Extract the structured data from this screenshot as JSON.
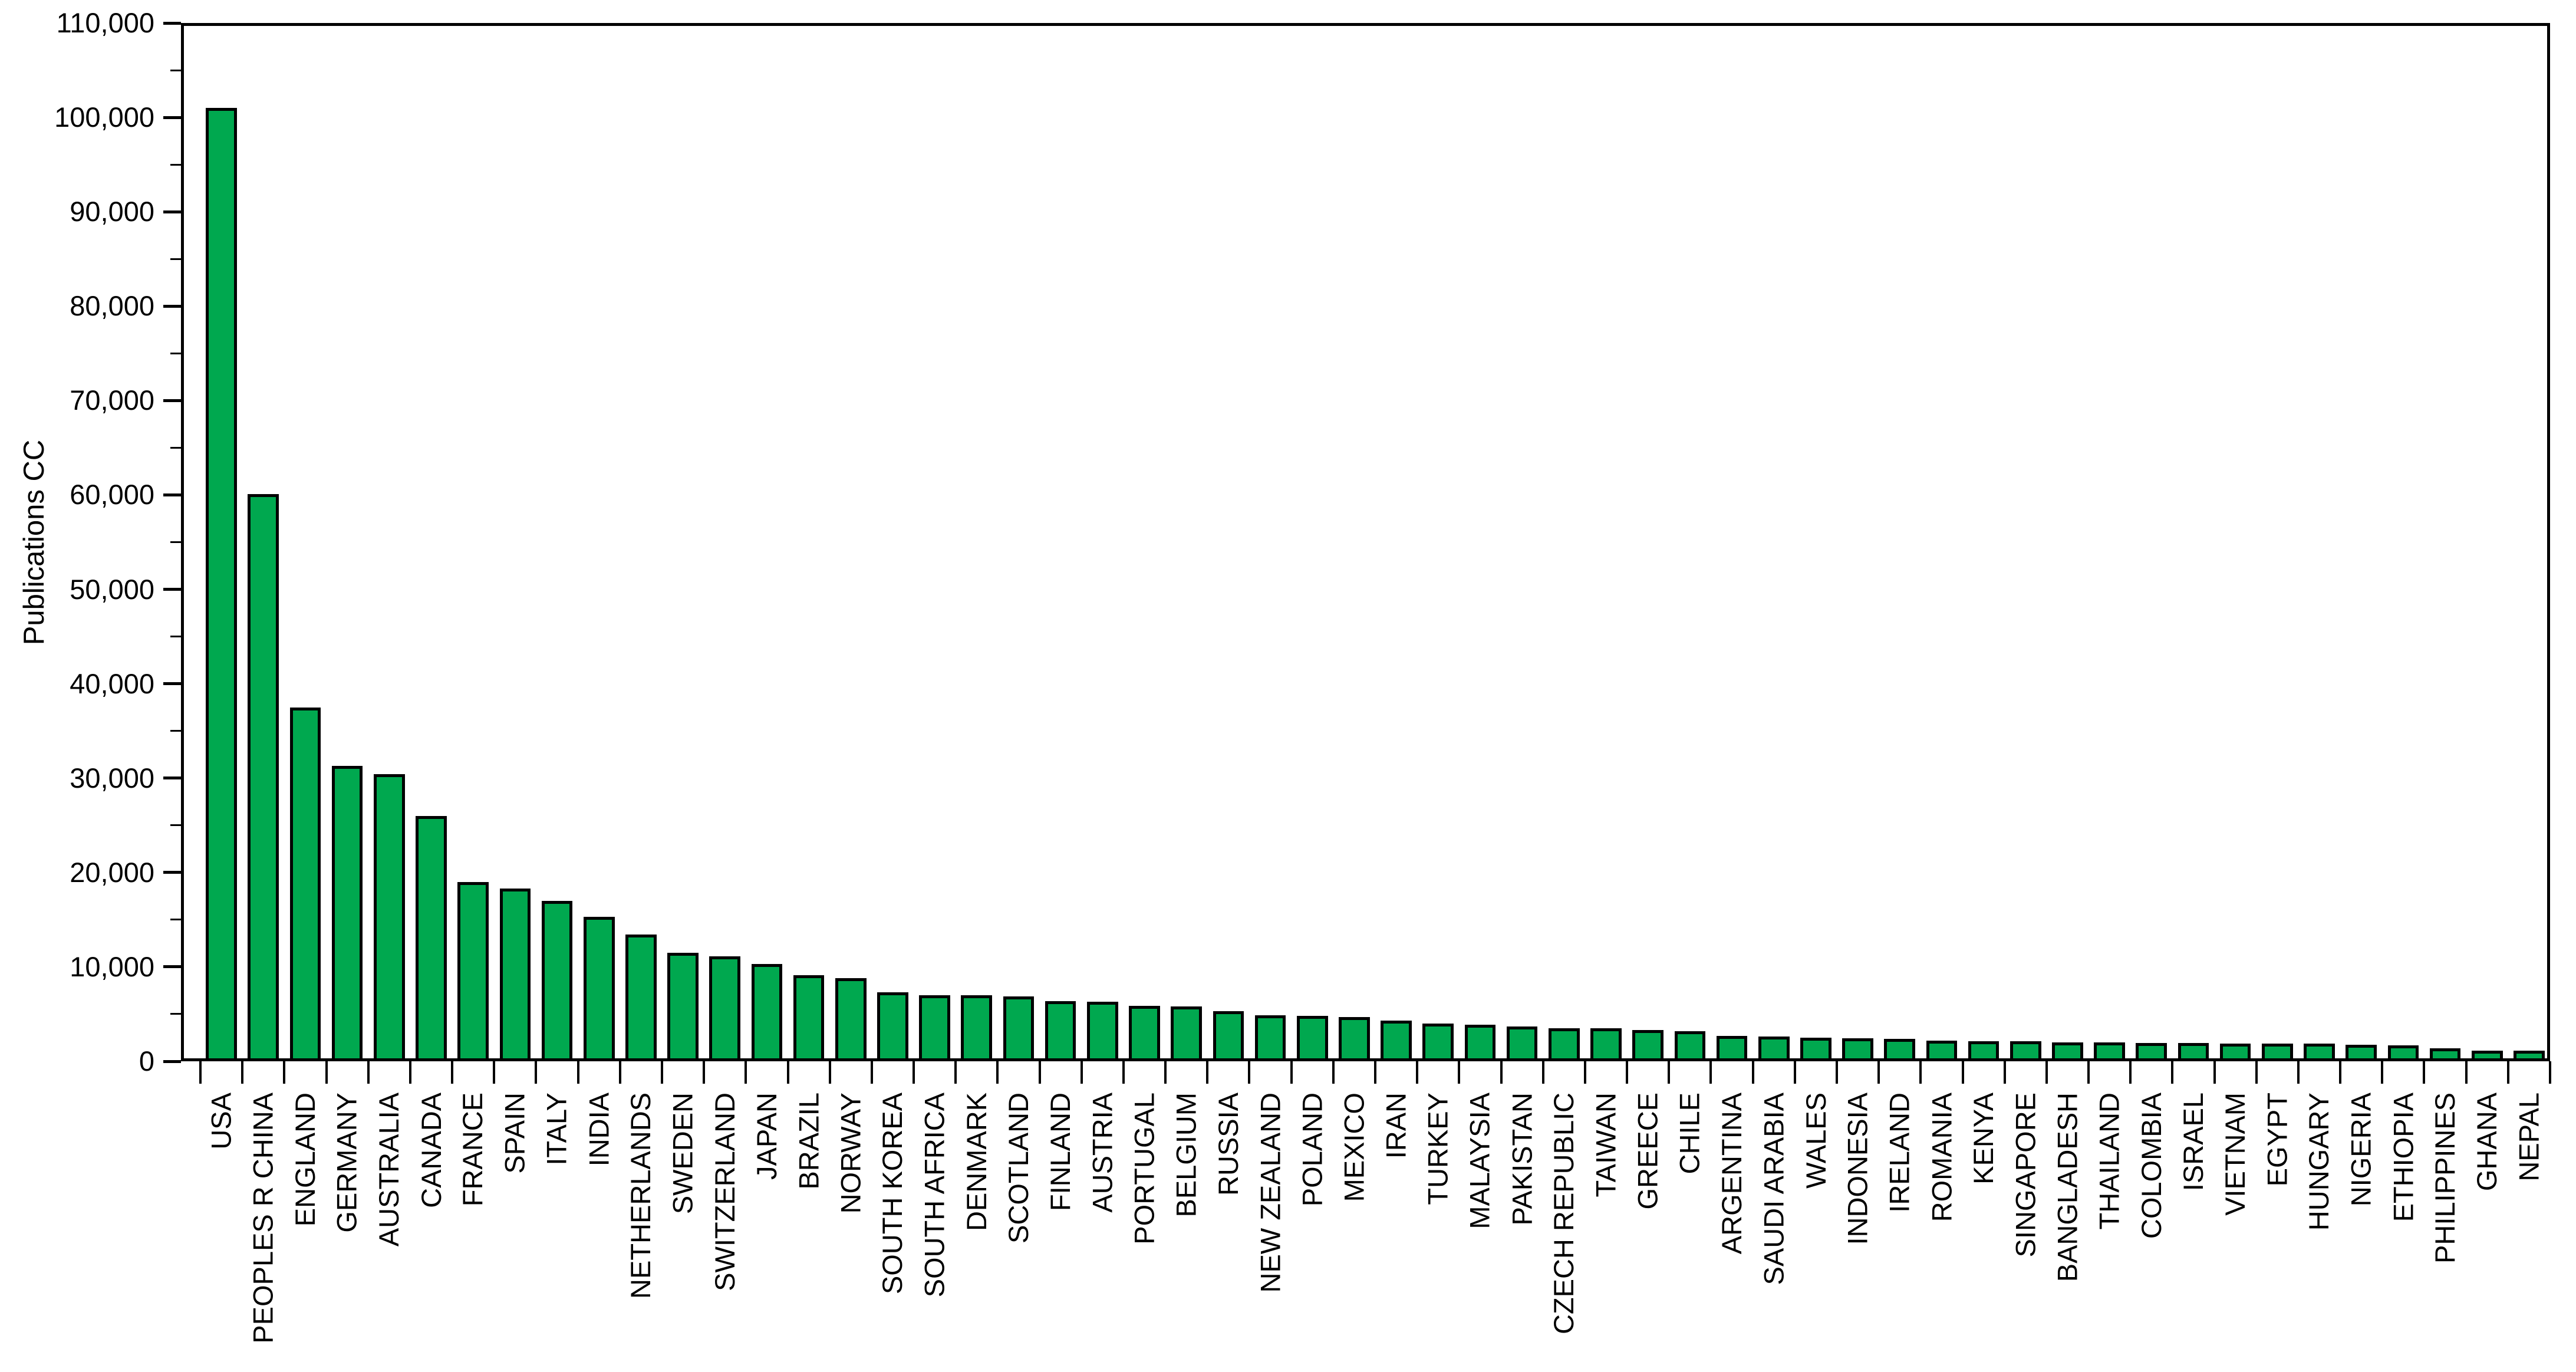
{
  "chart_data": {
    "type": "bar",
    "title": "",
    "xlabel": "",
    "ylabel": "Publications CC",
    "ylim": [
      0,
      110000
    ],
    "ytick_major": 10000,
    "ytick_minor": 5000,
    "ytick_labels": [
      "0",
      "10,000",
      "20,000",
      "30,000",
      "40,000",
      "50,000",
      "60,000",
      "70,000",
      "80,000",
      "90,000",
      "100,000",
      "110,000"
    ],
    "grid": false,
    "legend_position": "none",
    "bar_color": "#00A84F",
    "bar_border_color": "#000000",
    "categories": [
      "USA",
      "PEOPLES R CHINA",
      "ENGLAND",
      "GERMANY",
      "AUSTRALIA",
      "CANADA",
      "FRANCE",
      "SPAIN",
      "ITALY",
      "INDIA",
      "NETHERLANDS",
      "SWEDEN",
      "SWITZERLAND",
      "JAPAN",
      "BRAZIL",
      "NORWAY",
      "SOUTH KOREA",
      "SOUTH AFRICA",
      "DENMARK",
      "SCOTLAND",
      "FINLAND",
      "AUSTRIA",
      "PORTUGAL",
      "BELGIUM",
      "RUSSIA",
      "NEW ZEALAND",
      "POLAND",
      "MEXICO",
      "IRAN",
      "TURKEY",
      "MALAYSIA",
      "PAKISTAN",
      "CZECH REPUBLIC",
      "TAIWAN",
      "GREECE",
      "CHILE",
      "ARGENTINA",
      "SAUDI ARABIA",
      "WALES",
      "INDONESIA",
      "IRELAND",
      "ROMANIA",
      "KENYA",
      "SINGAPORE",
      "BANGLADESH",
      "THAILAND",
      "COLOMBIA",
      "ISRAEL",
      "VIETNAM",
      "EGYPT",
      "HUNGARY",
      "NIGERIA",
      "ETHIOPIA",
      "PHILIPPINES",
      "GHANA",
      "NEPAL"
    ],
    "values": [
      101000,
      60100,
      37500,
      31300,
      30400,
      26000,
      19000,
      18300,
      17000,
      15300,
      13400,
      11500,
      11100,
      10300,
      9100,
      8800,
      7300,
      7000,
      7000,
      6900,
      6400,
      6300,
      5900,
      5800,
      5300,
      4900,
      4800,
      4700,
      4300,
      4000,
      3900,
      3700,
      3500,
      3500,
      3300,
      3200,
      2700,
      2600,
      2500,
      2450,
      2350,
      2200,
      2100,
      2100,
      2000,
      2000,
      1950,
      1950,
      1900,
      1900,
      1850,
      1750,
      1700,
      1400,
      1150,
      1100
    ]
  }
}
